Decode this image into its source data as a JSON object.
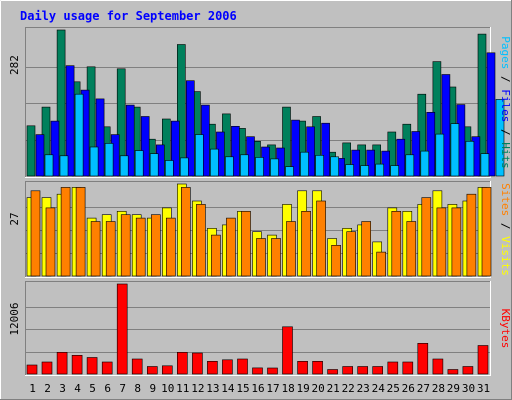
{
  "chart_data": {
    "type": "bar",
    "title": "Daily usage for September 2006",
    "categories": [
      "1",
      "2",
      "3",
      "4",
      "5",
      "6",
      "7",
      "8",
      "9",
      "10",
      "11",
      "12",
      "13",
      "14",
      "15",
      "16",
      "17",
      "18",
      "19",
      "20",
      "21",
      "22",
      "23",
      "24",
      "25",
      "26",
      "27",
      "28",
      "29",
      "30",
      "31"
    ],
    "weekend_days": [
      "3",
      "9",
      "10",
      "16",
      "17",
      "23",
      "24",
      "30",
      "31"
    ],
    "day_label_colors": {
      "weekday": "#000000",
      "weekend": "#00805c"
    },
    "panels": [
      {
        "id": "hits-files-pages",
        "max_label": "282",
        "max": 282,
        "series": [
          {
            "name": "Hits",
            "color": "#00805c",
            "values": [
              97,
              133,
              282,
              182,
              211,
              95,
              207,
              133,
              71,
              110,
              254,
              163,
              100,
              120,
              92,
              67,
              60,
              133,
              106,
              115,
              46,
              64,
              60,
              60,
              85,
              100,
              158,
              221,
              172,
              95,
              274
            ]
          },
          {
            "name": "Files",
            "color": "#0000ff",
            "values": [
              80,
              106,
              213,
              166,
              149,
              80,
              137,
              115,
              60,
              106,
              184,
              137,
              85,
              96,
              76,
              56,
              54,
              108,
              95,
              102,
              34,
              50,
              50,
              48,
              71,
              86,
              123,
              196,
              138,
              76,
              238
            ]
          },
          {
            "name": "Pages",
            "color": "#00c0ff",
            "values": [
              41,
              39,
              158,
              56,
              63,
              39,
              49,
              43,
              30,
              35,
              80,
              52,
              37,
              41,
              36,
              33,
              18,
              46,
              40,
              37,
              22,
              20,
              23,
              20,
              41,
              48,
              81,
              101,
              67,
              43,
              148
            ]
          }
        ],
        "axis_label_color": "#00805c"
      },
      {
        "id": "visits-sites",
        "max_label": "27",
        "max": 27,
        "series": [
          {
            "name": "Visits",
            "color": "#ffff00",
            "values": [
              23,
              23,
              24,
              26,
              17,
              18,
              19,
              18,
              17,
              20,
              27,
              22,
              14,
              15,
              19,
              13,
              12,
              21,
              25,
              25,
              11,
              14,
              15,
              10,
              20,
              19,
              21,
              25,
              21,
              22,
              26
            ]
          },
          {
            "name": "Sites",
            "color": "#ff8000",
            "values": [
              25,
              20,
              26,
              26,
              16,
              16,
              18,
              17,
              18,
              17,
              26,
              21,
              12,
              17,
              19,
              11,
              11,
              16,
              19,
              22,
              9,
              13,
              16,
              7,
              19,
              16,
              23,
              20,
              20,
              24,
              26
            ]
          }
        ],
        "axis_label_color": "#00805c"
      },
      {
        "id": "kbytes",
        "max_label": "12006",
        "max": 12006,
        "series": [
          {
            "name": "KBytes",
            "color": "#ff0000",
            "values": [
              1200,
              1600,
              2900,
              2500,
              2200,
              1600,
              12006,
              2000,
              1000,
              1100,
              2900,
              2800,
              1700,
              1900,
              2000,
              820,
              800,
              6300,
              1700,
              1700,
              600,
              1000,
              1000,
              1000,
              1600,
              1600,
              4100,
              2000,
              600,
              1000,
              3800
            ]
          }
        ],
        "axis_label_color": "#ff0000"
      }
    ],
    "colors": {
      "background": "#c0c0c0",
      "plot_background": "#c0c0c0",
      "gridline": "#808080",
      "bar_outline": "#000000",
      "title": "#0000ff"
    },
    "legend_placement": "right, vertical",
    "grid": true
  }
}
